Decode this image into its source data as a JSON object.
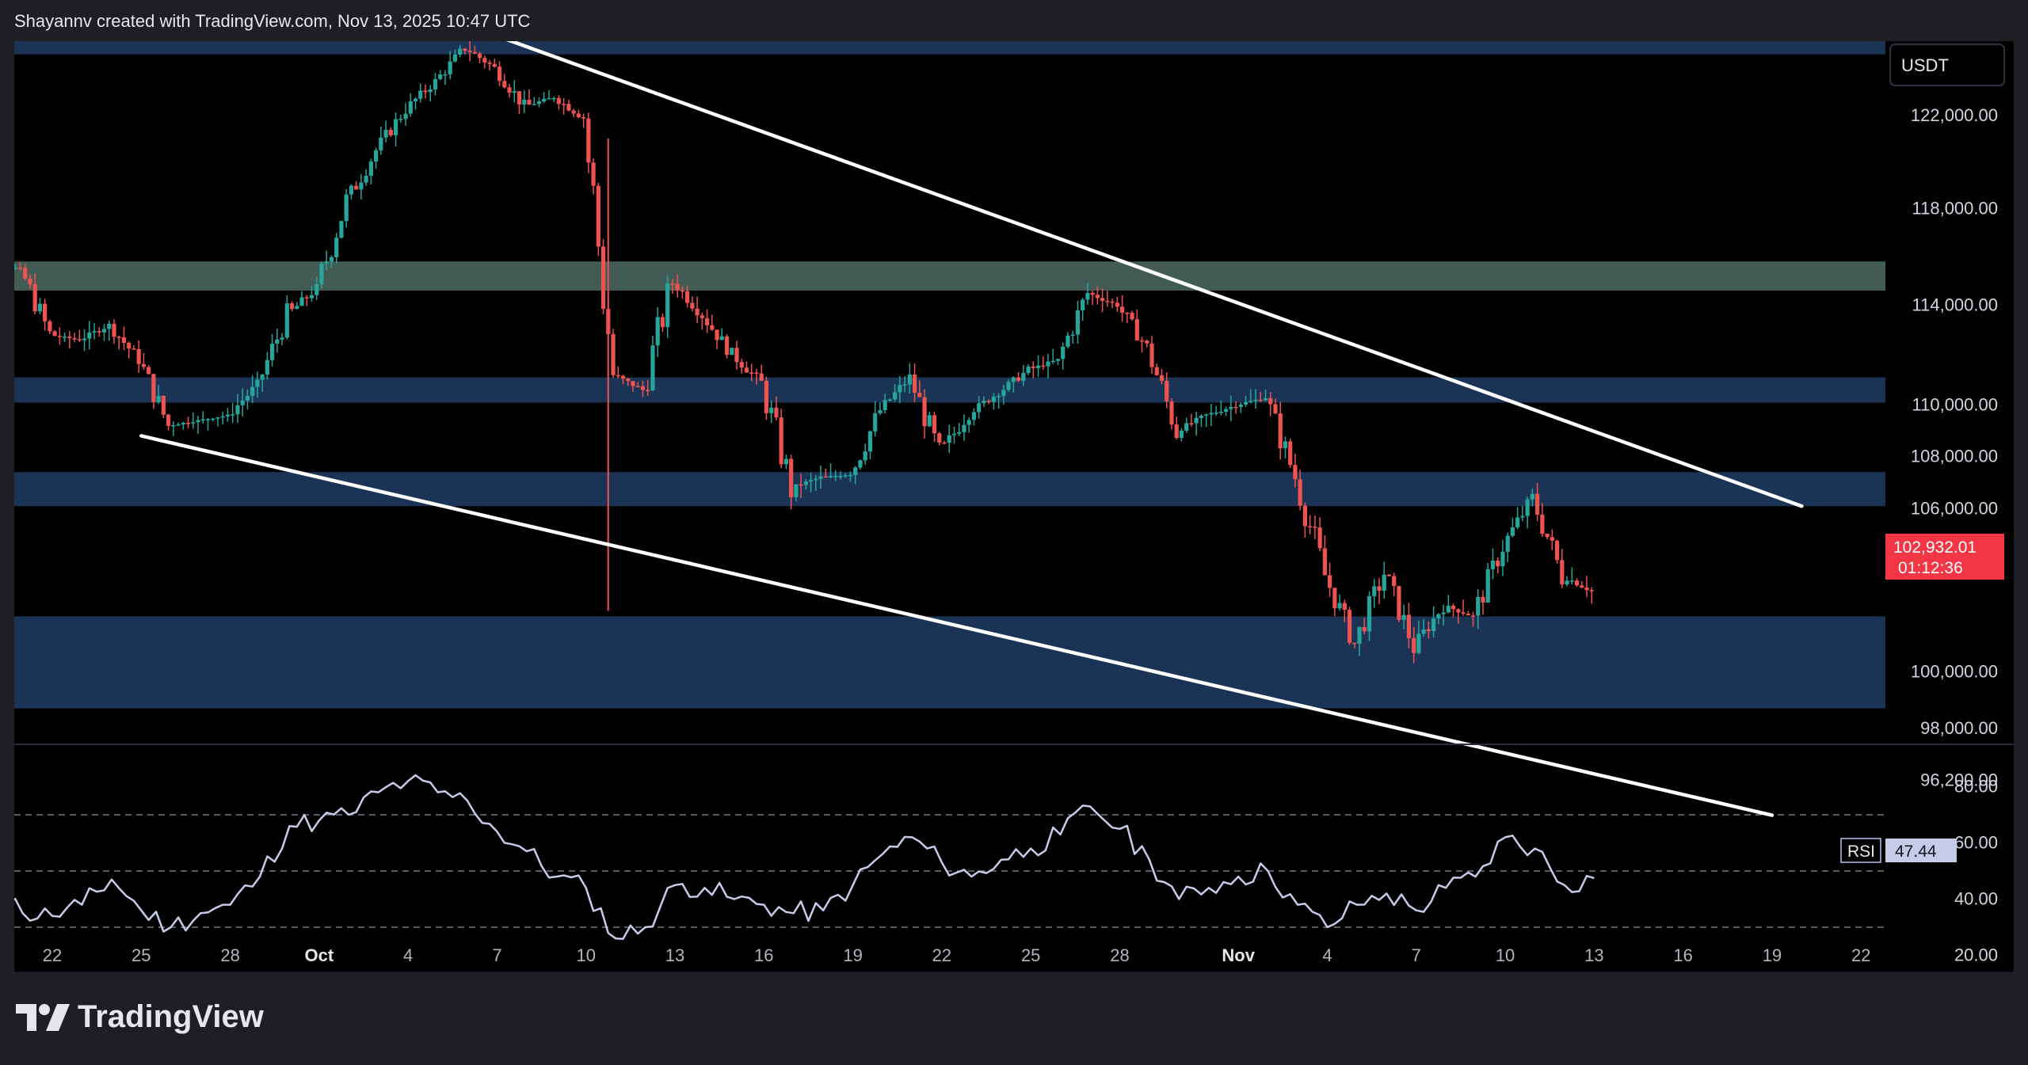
{
  "attribution": "Shayannv created with TradingView.com, Nov 13, 2025 10:47 UTC",
  "brand": "TradingView",
  "currency_button": "USDT",
  "last_price": {
    "value": "102,932.01",
    "countdown": "01:12:36"
  },
  "rsi_badge": {
    "label": "RSI",
    "value": "47.44"
  },
  "colors": {
    "up": "#26a69a",
    "down": "#ef5350",
    "zone_blue": "#1e3a5f",
    "zone_green": "#4d6b63",
    "rsi_line": "#c5cbe8",
    "trendline": "#ffffff"
  },
  "chart_data": [
    {
      "type": "candlestick",
      "interval": "4h",
      "x_tick_labels": [
        "22",
        "25",
        "28",
        "Oct",
        "4",
        "7",
        "10",
        "13",
        "16",
        "19",
        "22",
        "25",
        "28",
        "Nov",
        "4",
        "7",
        "10",
        "13",
        "16",
        "19",
        "22"
      ],
      "x_tick_dates": [
        "2025-09-22",
        "2025-09-25",
        "2025-09-28",
        "2025-10-01",
        "2025-10-04",
        "2025-10-07",
        "2025-10-10",
        "2025-10-13",
        "2025-10-16",
        "2025-10-19",
        "2025-10-22",
        "2025-10-25",
        "2025-10-28",
        "2025-11-01",
        "2025-11-04",
        "2025-11-07",
        "2025-11-10",
        "2025-11-13",
        "2025-11-16",
        "2025-11-19",
        "2025-11-22"
      ],
      "y_tick_labels": [
        "122,000.00",
        "118,000.00",
        "114,000.00",
        "110,000.00",
        "108,000.00",
        "106,000.00",
        "104,000.00",
        "100,000.00",
        "98,000.00",
        "96,200.00"
      ],
      "close_path": [
        [
          "2025-09-19",
          115900
        ],
        [
          "2025-09-20",
          115700
        ],
        [
          "2025-09-21",
          115500
        ],
        [
          "2025-09-22",
          112800
        ],
        [
          "2025-09-23",
          112600
        ],
        [
          "2025-09-24",
          113200
        ],
        [
          "2025-09-25",
          111800
        ],
        [
          "2025-09-26",
          109200
        ],
        [
          "2025-09-27",
          109400
        ],
        [
          "2025-09-28",
          109600
        ],
        [
          "2025-09-29",
          110800
        ],
        [
          "2025-09-30",
          113600
        ],
        [
          "2025-10-01",
          114700
        ],
        [
          "2025-10-02",
          118300
        ],
        [
          "2025-10-03",
          120500
        ],
        [
          "2025-10-04",
          122300
        ],
        [
          "2025-10-05",
          123500
        ],
        [
          "2025-10-06",
          125000
        ],
        [
          "2025-10-07",
          124100
        ],
        [
          "2025-10-08",
          122400
        ],
        [
          "2025-10-09",
          122800
        ],
        [
          "2025-10-10",
          121900
        ],
        [
          "2025-10-11",
          111200
        ],
        [
          "2025-10-12",
          110600
        ],
        [
          "2025-10-13",
          115000
        ],
        [
          "2025-10-14",
          113600
        ],
        [
          "2025-10-15",
          112000
        ],
        [
          "2025-10-16",
          110900
        ],
        [
          "2025-10-17",
          106800
        ],
        [
          "2025-10-18",
          107200
        ],
        [
          "2025-10-19",
          107300
        ],
        [
          "2025-10-20",
          109800
        ],
        [
          "2025-10-21",
          111100
        ],
        [
          "2025-10-22",
          108100
        ],
        [
          "2025-10-23",
          109700
        ],
        [
          "2025-10-24",
          110500
        ],
        [
          "2025-10-25",
          111400
        ],
        [
          "2025-10-26",
          111800
        ],
        [
          "2025-10-27",
          114500
        ],
        [
          "2025-10-28",
          114000
        ],
        [
          "2025-10-29",
          112300
        ],
        [
          "2025-10-30",
          109000
        ],
        [
          "2025-10-31",
          109600
        ],
        [
          "2025-11-01",
          110000
        ],
        [
          "2025-11-02",
          110300
        ],
        [
          "2025-11-03",
          107200
        ],
        [
          "2025-11-04",
          103500
        ],
        [
          "2025-11-05",
          101000
        ],
        [
          "2025-11-06",
          103600
        ],
        [
          "2025-11-07",
          100900
        ],
        [
          "2025-11-08",
          102400
        ],
        [
          "2025-11-09",
          102000
        ],
        [
          "2025-11-10",
          104600
        ],
        [
          "2025-11-11",
          106400
        ],
        [
          "2025-11-12",
          103500
        ],
        [
          "2025-11-13",
          102932
        ]
      ],
      "notable_extremes": {
        "high": 126000,
        "low_wick_oct10": 102200
      },
      "zones": [
        {
          "name": "supply-top",
          "from": 125500,
          "to": 124700,
          "color": "blue"
        },
        {
          "name": "resistance-green",
          "from": 115800,
          "to": 114600,
          "color": "green"
        },
        {
          "name": "supply-mid",
          "from": 111100,
          "to": 110100,
          "color": "blue"
        },
        {
          "name": "demand-mid",
          "from": 107400,
          "to": 106100,
          "color": "blue"
        },
        {
          "name": "demand-low",
          "from": 102000,
          "to": 98700,
          "color": "blue"
        }
      ],
      "trendlines": [
        {
          "name": "descending-resistance",
          "start": [
            "2025-10-06",
            126000
          ],
          "end": [
            "2025-11-20",
            106100
          ]
        },
        {
          "name": "descending-support",
          "start": [
            "2025-09-25",
            108800
          ],
          "end": [
            "2025-11-19",
            95000
          ]
        }
      ]
    },
    {
      "type": "line",
      "series": [
        {
          "name": "RSI",
          "last": 47.44
        }
      ],
      "y_tick_labels": [
        "80.00",
        "60.00",
        "40.00",
        "20.00"
      ],
      "ylim": [
        10,
        90
      ],
      "guides": [
        70,
        50,
        30
      ],
      "points": [
        [
          "2025-09-19",
          49
        ],
        [
          "2025-09-20",
          47
        ],
        [
          "2025-09-21",
          35
        ],
        [
          "2025-09-22",
          34
        ],
        [
          "2025-09-23",
          38
        ],
        [
          "2025-09-24",
          47
        ],
        [
          "2025-09-25",
          36
        ],
        [
          "2025-09-26",
          30
        ],
        [
          "2025-09-27",
          35
        ],
        [
          "2025-09-28",
          38
        ],
        [
          "2025-09-29",
          48
        ],
        [
          "2025-09-30",
          66
        ],
        [
          "2025-10-01",
          68
        ],
        [
          "2025-10-02",
          70
        ],
        [
          "2025-10-03",
          78
        ],
        [
          "2025-10-04",
          82
        ],
        [
          "2025-10-05",
          78
        ],
        [
          "2025-10-06",
          75
        ],
        [
          "2025-10-07",
          64
        ],
        [
          "2025-10-08",
          57
        ],
        [
          "2025-10-09",
          48
        ],
        [
          "2025-10-10",
          44
        ],
        [
          "2025-10-11",
          26
        ],
        [
          "2025-10-12",
          30
        ],
        [
          "2025-10-13",
          45
        ],
        [
          "2025-10-14",
          44
        ],
        [
          "2025-10-15",
          40
        ],
        [
          "2025-10-16",
          38
        ],
        [
          "2025-10-17",
          35
        ],
        [
          "2025-10-18",
          36
        ],
        [
          "2025-10-19",
          45
        ],
        [
          "2025-10-20",
          56
        ],
        [
          "2025-10-21",
          62
        ],
        [
          "2025-10-22",
          53
        ],
        [
          "2025-10-23",
          48
        ],
        [
          "2025-10-24",
          54
        ],
        [
          "2025-10-25",
          58
        ],
        [
          "2025-10-26",
          63
        ],
        [
          "2025-10-27",
          73
        ],
        [
          "2025-10-28",
          65
        ],
        [
          "2025-10-29",
          54
        ],
        [
          "2025-10-30",
          40
        ],
        [
          "2025-10-31",
          44
        ],
        [
          "2025-11-01",
          48
        ],
        [
          "2025-11-02",
          50
        ],
        [
          "2025-11-03",
          38
        ],
        [
          "2025-11-04",
          30
        ],
        [
          "2025-11-05",
          38
        ],
        [
          "2025-11-06",
          42
        ],
        [
          "2025-11-07",
          36
        ],
        [
          "2025-11-08",
          44
        ],
        [
          "2025-11-09",
          48
        ],
        [
          "2025-11-10",
          62
        ],
        [
          "2025-11-11",
          58
        ],
        [
          "2025-11-12",
          45
        ],
        [
          "2025-11-13",
          47.44
        ]
      ]
    }
  ]
}
